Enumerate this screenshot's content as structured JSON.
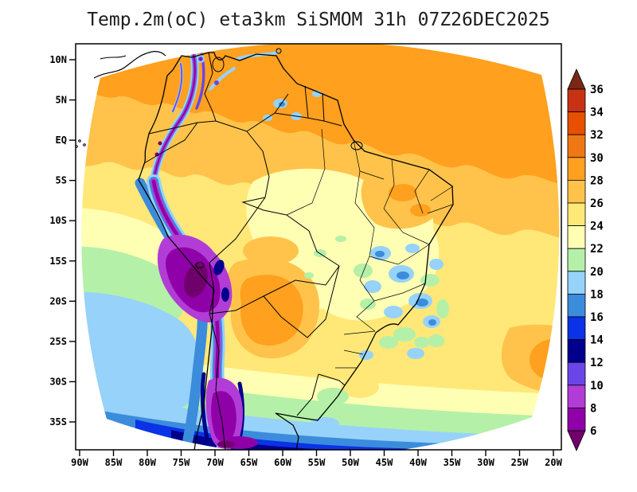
{
  "title": "Temp.2m(oC) eta3km SiSMOM 31h 07Z26DEC2025",
  "axes": {
    "lat_ticks": [
      "10N",
      "5N",
      "EQ",
      "5S",
      "10S",
      "15S",
      "20S",
      "25S",
      "30S",
      "35S"
    ],
    "lon_ticks": [
      "90W",
      "85W",
      "80W",
      "75W",
      "70W",
      "65W",
      "60W",
      "55W",
      "50W",
      "45W",
      "40W",
      "35W",
      "30W",
      "25W",
      "20W"
    ]
  },
  "colorbar": {
    "units": "oC",
    "levels": [
      6,
      8,
      10,
      12,
      14,
      16,
      18,
      20,
      22,
      24,
      26,
      28,
      30,
      32,
      34,
      36
    ],
    "colors": [
      "#70006C",
      "#9000A8",
      "#B23CD6",
      "#6A46E8",
      "#00008C",
      "#0A32E6",
      "#3C8CDC",
      "#96D2FA",
      "#B4F0A8",
      "#FFFFB4",
      "#FFE878",
      "#FFC34B",
      "#FFA01E",
      "#F07814",
      "#E65000",
      "#C83214",
      "#782814"
    ]
  },
  "chart_data": {
    "type": "heatmap",
    "title": "Temp.2m(oC) eta3km SiSMOM 31h 07Z26DEC2025",
    "variable": "2-meter air temperature (oC)",
    "model": "eta3km SiSMOM",
    "forecast_hour": "31h",
    "valid_time": "07Z26DEC2025",
    "x_axis": {
      "label": "longitude",
      "ticks": [
        "90W",
        "85W",
        "80W",
        "75W",
        "70W",
        "65W",
        "60W",
        "55W",
        "50W",
        "45W",
        "40W",
        "35W",
        "30W",
        "25W",
        "20W"
      ]
    },
    "y_axis": {
      "label": "latitude",
      "ticks": [
        "10N",
        "5N",
        "EQ",
        "5S",
        "10S",
        "15S",
        "20S",
        "25S",
        "30S",
        "35S"
      ]
    },
    "colorbar_levels_C": [
      6,
      8,
      10,
      12,
      14,
      16,
      18,
      20,
      22,
      24,
      26,
      28,
      30,
      32,
      34,
      36
    ],
    "colorbar_colors": [
      "#70006C",
      "#9000A8",
      "#B23CD6",
      "#6A46E8",
      "#00008C",
      "#0A32E6",
      "#3C8CDC",
      "#96D2FA",
      "#B4F0A8",
      "#FFFFB4",
      "#FFE878",
      "#FFC34B",
      "#FFA01E",
      "#F07814",
      "#E65000",
      "#C83214",
      "#782814"
    ],
    "features": [
      {
        "region": "Northern South America and tropical Atlantic (Venezuela, Guianas, Amazon mouth)",
        "approx_temp_C": "26-30"
      },
      {
        "region": "Amazon basin and central Brazil",
        "approx_temp_C": "22-26"
      },
      {
        "region": "Interior Northeast Brazil",
        "approx_temp_C": "26-28"
      },
      {
        "region": "Andes cordillera from Colombia to southern Chile",
        "approx_temp_C": "below 6 to 12"
      },
      {
        "region": "Altiplano (Peru/Bolivia)",
        "approx_temp_C": "below 6 to 10"
      },
      {
        "region": "Coastal Pacific off Peru/Chile (Humboldt current)",
        "approx_temp_C": "14-18"
      },
      {
        "region": "Southeast Brazilian highlands (patchy cool spots)",
        "approx_temp_C": "16-20"
      },
      {
        "region": "Gran Chaco (Paraguay / N Argentina)",
        "approx_temp_C": "26-30"
      },
      {
        "region": "Far south of domain near 35S",
        "approx_temp_C": "8-16"
      }
    ]
  }
}
